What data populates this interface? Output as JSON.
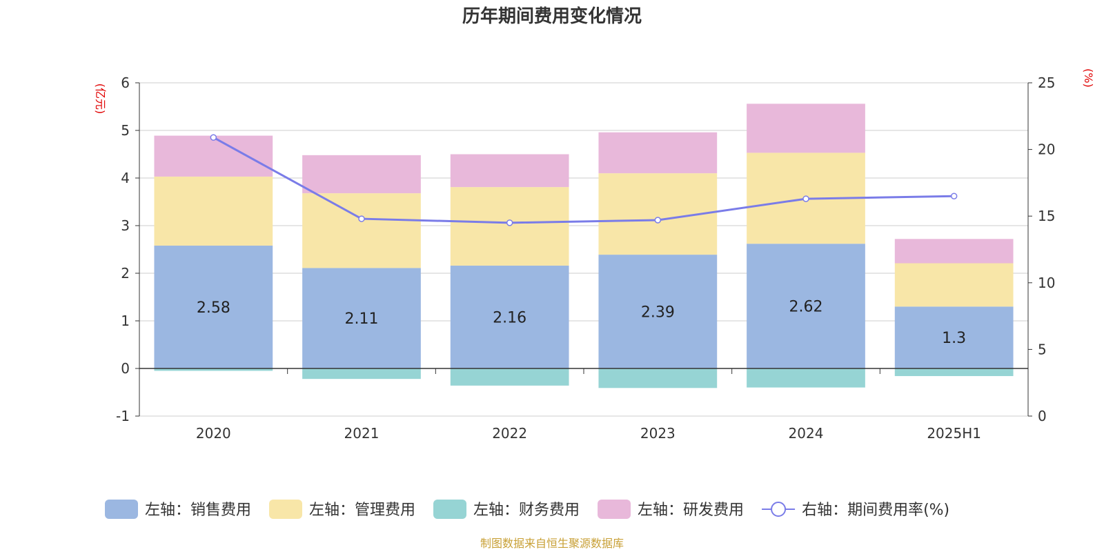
{
  "chart_data": {
    "type": "bar",
    "stacked": true,
    "title": "历年期间费用变化情况",
    "categories": [
      "2020",
      "2021",
      "2022",
      "2023",
      "2024",
      "2025H1"
    ],
    "left_axis": {
      "unit": "(亿元)",
      "range": [
        -1,
        6
      ],
      "ticks": [
        "-1",
        "0",
        "1",
        "2",
        "3",
        "4",
        "5",
        "6"
      ]
    },
    "right_axis": {
      "unit": "(%)",
      "range": [
        0,
        25
      ],
      "ticks": [
        "0",
        "5",
        "10",
        "15",
        "20",
        "25"
      ]
    },
    "series": [
      {
        "name": "左轴：销售费用",
        "axis": "left",
        "kind": "bar",
        "color": "#9bb7e1",
        "values": [
          2.58,
          2.11,
          2.16,
          2.39,
          2.62,
          1.3
        ],
        "labels": [
          "2.58",
          "2.11",
          "2.16",
          "2.39",
          "2.62",
          "1.3"
        ]
      },
      {
        "name": "左轴：管理费用",
        "axis": "left",
        "kind": "bar",
        "color": "#f8e6a8",
        "values": [
          1.45,
          1.57,
          1.65,
          1.71,
          1.91,
          0.91
        ]
      },
      {
        "name": "左轴：财务费用",
        "axis": "left",
        "kind": "bar",
        "color": "#96d4d4",
        "values": [
          -0.05,
          -0.22,
          -0.36,
          -0.41,
          -0.4,
          -0.16
        ]
      },
      {
        "name": "左轴：研发费用",
        "axis": "left",
        "kind": "bar",
        "color": "#e8b8da",
        "values": [
          0.86,
          0.8,
          0.69,
          0.86,
          1.03,
          0.51
        ]
      },
      {
        "name": "右轴：期间费用率(%)",
        "axis": "right",
        "kind": "line",
        "color": "#7a7ce8",
        "values": [
          20.9,
          14.8,
          14.5,
          14.7,
          16.3,
          16.5
        ]
      }
    ],
    "grid": true,
    "legend_position": "bottom"
  },
  "source": "制图数据来自恒生聚源数据库"
}
